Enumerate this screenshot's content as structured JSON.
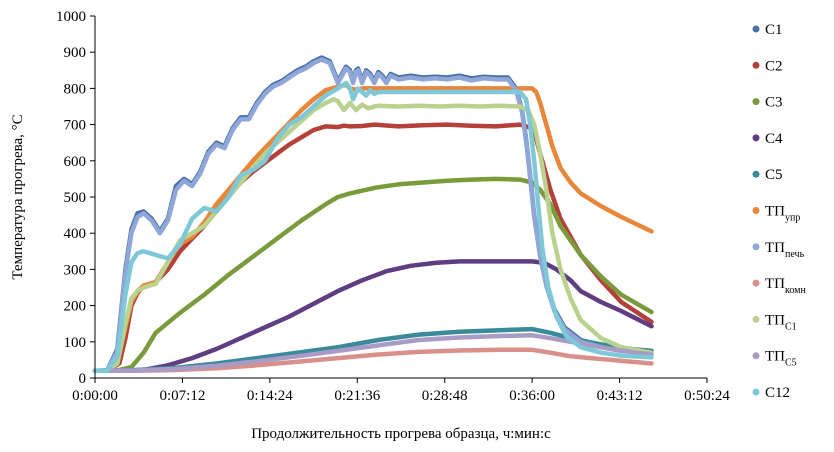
{
  "chart_data": {
    "type": "line",
    "title": "",
    "xlabel": "Продолжительность прогрева образца, ч:мин:с",
    "ylabel": "Температура прогрева, °С",
    "xlim": [
      0,
      3024
    ],
    "ylim": [
      0,
      1000
    ],
    "x_unit": "seconds",
    "x_ticks": [
      {
        "value": 0,
        "label": "0:00:00"
      },
      {
        "value": 432,
        "label": "0:07:12"
      },
      {
        "value": 864,
        "label": "0:14:24"
      },
      {
        "value": 1296,
        "label": "0:21:36"
      },
      {
        "value": 1728,
        "label": "0:28:48"
      },
      {
        "value": 2160,
        "label": "0:36:00"
      },
      {
        "value": 2592,
        "label": "0:43:12"
      },
      {
        "value": 3024,
        "label": "0:50:24"
      }
    ],
    "y_ticks": [
      {
        "value": 0,
        "label": "0"
      },
      {
        "value": 100,
        "label": "100"
      },
      {
        "value": 200,
        "label": "200"
      },
      {
        "value": 300,
        "label": "300"
      },
      {
        "value": 400,
        "label": "400"
      },
      {
        "value": 500,
        "label": "500"
      },
      {
        "value": 600,
        "label": "600"
      },
      {
        "value": 700,
        "label": "700"
      },
      {
        "value": 800,
        "label": "800"
      },
      {
        "value": 900,
        "label": "900"
      },
      {
        "value": 1000,
        "label": "1000"
      }
    ],
    "grid": false,
    "legend_position": "right",
    "series": [
      {
        "name": "C1",
        "name_main": "C1",
        "name_sub": "",
        "color": "#4A6FA5",
        "x": [
          0,
          60,
          110,
          150,
          180,
          210,
          240,
          280,
          320,
          360,
          400,
          440,
          480,
          520,
          560,
          600,
          640,
          680,
          720,
          760,
          800,
          840,
          880,
          920,
          960,
          1000,
          1040,
          1080,
          1120,
          1160,
          1200,
          1240,
          1260,
          1275,
          1290,
          1300,
          1320,
          1340,
          1360,
          1380,
          1400,
          1420,
          1440,
          1460,
          1500,
          1560,
          1620,
          1680,
          1740,
          1800,
          1860,
          1920,
          1980,
          2040,
          2080,
          2110,
          2130,
          2150,
          2170,
          2200,
          2230,
          2270,
          2320,
          2400,
          2500,
          2600,
          2750
        ],
        "y": [
          20,
          20,
          80,
          300,
          410,
          455,
          460,
          440,
          405,
          440,
          530,
          550,
          535,
          570,
          625,
          650,
          640,
          690,
          720,
          720,
          760,
          790,
          810,
          820,
          835,
          850,
          860,
          875,
          885,
          875,
          820,
          860,
          850,
          820,
          850,
          855,
          820,
          850,
          840,
          820,
          845,
          835,
          820,
          840,
          830,
          835,
          830,
          832,
          830,
          835,
          828,
          832,
          830,
          830,
          800,
          740,
          660,
          560,
          450,
          340,
          260,
          190,
          140,
          105,
          90,
          82,
          75
        ]
      },
      {
        "name": "C2",
        "name_main": "C2",
        "name_sub": "",
        "color": "#B5403A",
        "x": [
          0,
          60,
          120,
          150,
          180,
          210,
          240,
          300,
          360,
          420,
          480,
          540,
          600,
          660,
          720,
          780,
          840,
          900,
          960,
          1020,
          1080,
          1140,
          1200,
          1230,
          1260,
          1320,
          1380,
          1500,
          1620,
          1740,
          1860,
          1980,
          2100,
          2160,
          2180,
          2200,
          2250,
          2300,
          2400,
          2500,
          2600,
          2750
        ],
        "y": [
          20,
          20,
          40,
          110,
          200,
          235,
          255,
          265,
          300,
          350,
          385,
          420,
          470,
          505,
          540,
          570,
          595,
          620,
          645,
          665,
          685,
          695,
          693,
          697,
          695,
          696,
          700,
          695,
          698,
          700,
          697,
          695,
          700,
          690,
          660,
          620,
          520,
          440,
          340,
          270,
          210,
          155
        ]
      },
      {
        "name": "C3",
        "name_main": "C3",
        "name_sub": "",
        "color": "#7A9B3C",
        "x": [
          0,
          120,
          180,
          240,
          300,
          420,
          540,
          660,
          780,
          900,
          1020,
          1140,
          1200,
          1260,
          1380,
          1500,
          1620,
          1740,
          1860,
          1980,
          2100,
          2160,
          2200,
          2250,
          2300,
          2400,
          2500,
          2600,
          2750
        ],
        "y": [
          20,
          22,
          30,
          70,
          125,
          180,
          230,
          285,
          335,
          385,
          435,
          480,
          500,
          510,
          525,
          535,
          540,
          545,
          548,
          550,
          548,
          540,
          520,
          480,
          420,
          340,
          280,
          230,
          182
        ]
      },
      {
        "name": "C4",
        "name_main": "C4",
        "name_sub": "",
        "color": "#5E3D82",
        "x": [
          0,
          120,
          240,
          360,
          480,
          600,
          720,
          840,
          960,
          1080,
          1200,
          1320,
          1440,
          1560,
          1680,
          1800,
          1920,
          2040,
          2160,
          2220,
          2280,
          2350,
          2400,
          2500,
          2600,
          2750
        ],
        "y": [
          20,
          20,
          22,
          35,
          55,
          80,
          110,
          140,
          170,
          205,
          240,
          270,
          295,
          310,
          318,
          322,
          322,
          322,
          322,
          318,
          300,
          270,
          240,
          210,
          185,
          143
        ]
      },
      {
        "name": "C5",
        "name_main": "C5",
        "name_sub": "",
        "color": "#3A8A9A",
        "x": [
          0,
          200,
          400,
          600,
          800,
          1000,
          1200,
          1400,
          1600,
          1800,
          2000,
          2160,
          2250,
          2350,
          2450,
          2550,
          2650,
          2750
        ],
        "y": [
          20,
          22,
          28,
          40,
          55,
          70,
          85,
          105,
          120,
          128,
          132,
          135,
          125,
          110,
          98,
          88,
          80,
          75
        ]
      },
      {
        "name": "ТПупр",
        "name_main": "ТП",
        "name_sub": "упр",
        "color": "#E8873A",
        "x": [
          0,
          60,
          110,
          150,
          180,
          210,
          240,
          300,
          360,
          420,
          480,
          540,
          600,
          660,
          720,
          780,
          840,
          900,
          960,
          1020,
          1080,
          1140,
          1200,
          1240,
          1260,
          1300,
          1320,
          1400,
          1500,
          1600,
          1700,
          1800,
          1900,
          2000,
          2100,
          2160,
          2180,
          2200,
          2230,
          2260,
          2300,
          2350,
          2400,
          2500,
          2600,
          2750
        ],
        "y": [
          20,
          20,
          40,
          140,
          210,
          240,
          255,
          265,
          320,
          370,
          390,
          430,
          480,
          520,
          560,
          600,
          635,
          670,
          705,
          740,
          770,
          795,
          805,
          810,
          800,
          795,
          800,
          800,
          800,
          800,
          800,
          800,
          800,
          800,
          800,
          800,
          790,
          760,
          700,
          640,
          580,
          540,
          510,
          475,
          445,
          405
        ]
      },
      {
        "name": "ТПпечь",
        "name_main": "ТП",
        "name_sub": "печь",
        "color": "#8FA7D8",
        "x": [
          0,
          60,
          110,
          150,
          180,
          210,
          240,
          280,
          320,
          360,
          400,
          440,
          480,
          520,
          560,
          600,
          640,
          680,
          720,
          760,
          800,
          840,
          880,
          920,
          960,
          1000,
          1040,
          1080,
          1120,
          1160,
          1200,
          1240,
          1260,
          1275,
          1290,
          1300,
          1320,
          1340,
          1360,
          1380,
          1400,
          1420,
          1440,
          1460,
          1500,
          1560,
          1620,
          1680,
          1740,
          1800,
          1860,
          1920,
          1980,
          2040,
          2080,
          2110,
          2130,
          2150,
          2170,
          2200,
          2230,
          2270,
          2320,
          2400,
          2500,
          2600,
          2750
        ],
        "y": [
          20,
          20,
          75,
          290,
          400,
          445,
          455,
          435,
          400,
          435,
          520,
          545,
          530,
          565,
          620,
          645,
          635,
          685,
          715,
          715,
          755,
          785,
          805,
          815,
          830,
          845,
          855,
          870,
          880,
          870,
          815,
          855,
          845,
          815,
          845,
          850,
          815,
          845,
          835,
          815,
          840,
          830,
          815,
          835,
          825,
          830,
          825,
          828,
          825,
          830,
          822,
          828,
          825,
          825,
          795,
          735,
          655,
          555,
          445,
          335,
          255,
          185,
          135,
          100,
          85,
          75,
          68
        ]
      },
      {
        "name": "ТПкомн",
        "name_main": "ТП",
        "name_sub": "комн",
        "color": "#D9908A",
        "x": [
          0,
          200,
          400,
          600,
          800,
          1000,
          1200,
          1400,
          1600,
          1800,
          2000,
          2160,
          2250,
          2350,
          2450,
          2550,
          2650,
          2750
        ],
        "y": [
          20,
          20,
          22,
          27,
          35,
          45,
          55,
          65,
          72,
          76,
          78,
          78,
          70,
          60,
          55,
          50,
          45,
          40
        ]
      },
      {
        "name": "ТПC1",
        "name_main": "ТП",
        "name_sub": "C1",
        "color": "#B9D28E",
        "x": [
          0,
          60,
          110,
          150,
          180,
          210,
          240,
          300,
          360,
          420,
          480,
          540,
          600,
          660,
          720,
          780,
          840,
          900,
          960,
          1020,
          1080,
          1140,
          1180,
          1200,
          1230,
          1260,
          1290,
          1320,
          1350,
          1380,
          1400,
          1500,
          1600,
          1700,
          1800,
          1900,
          2000,
          2100,
          2140,
          2170,
          2200,
          2230,
          2260,
          2300,
          2350,
          2400,
          2500,
          2600,
          2750
        ],
        "y": [
          20,
          20,
          40,
          150,
          220,
          240,
          250,
          260,
          320,
          380,
          400,
          420,
          460,
          500,
          540,
          580,
          620,
          650,
          680,
          710,
          740,
          760,
          770,
          765,
          740,
          760,
          740,
          755,
          745,
          750,
          752,
          750,
          752,
          750,
          752,
          750,
          752,
          750,
          740,
          700,
          620,
          520,
          400,
          300,
          220,
          160,
          110,
          85,
          70
        ]
      },
      {
        "name": "ТПC5",
        "name_main": "ТП",
        "name_sub": "C5",
        "color": "#A89BC6",
        "x": [
          0,
          200,
          400,
          600,
          800,
          1000,
          1200,
          1400,
          1600,
          1800,
          2000,
          2160,
          2250,
          2350,
          2450,
          2550,
          2650,
          2750
        ],
        "y": [
          20,
          21,
          25,
          34,
          46,
          60,
          75,
          90,
          105,
          112,
          116,
          118,
          110,
          100,
          90,
          80,
          72,
          65
        ]
      },
      {
        "name": "C12",
        "name_main": "C12",
        "name_sub": "",
        "color": "#7EC8D8",
        "x": [
          0,
          60,
          110,
          150,
          180,
          210,
          240,
          300,
          360,
          420,
          480,
          540,
          600,
          660,
          720,
          780,
          840,
          900,
          960,
          1020,
          1080,
          1140,
          1200,
          1240,
          1260,
          1275,
          1300,
          1320,
          1340,
          1360,
          1380,
          1400,
          1500,
          1600,
          1700,
          1800,
          1900,
          2000,
          2100,
          2130,
          2150,
          2170,
          2190,
          2210,
          2240,
          2280,
          2330,
          2400,
          2500,
          2600,
          2750
        ],
        "y": [
          20,
          20,
          60,
          230,
          320,
          345,
          350,
          340,
          330,
          370,
          440,
          470,
          460,
          500,
          560,
          575,
          600,
          660,
          700,
          720,
          750,
          780,
          800,
          815,
          800,
          770,
          800,
          790,
          780,
          795,
          785,
          790,
          790,
          790,
          790,
          790,
          790,
          790,
          790,
          770,
          700,
          600,
          480,
          360,
          250,
          170,
          115,
          85,
          70,
          62,
          57
        ]
      }
    ]
  }
}
